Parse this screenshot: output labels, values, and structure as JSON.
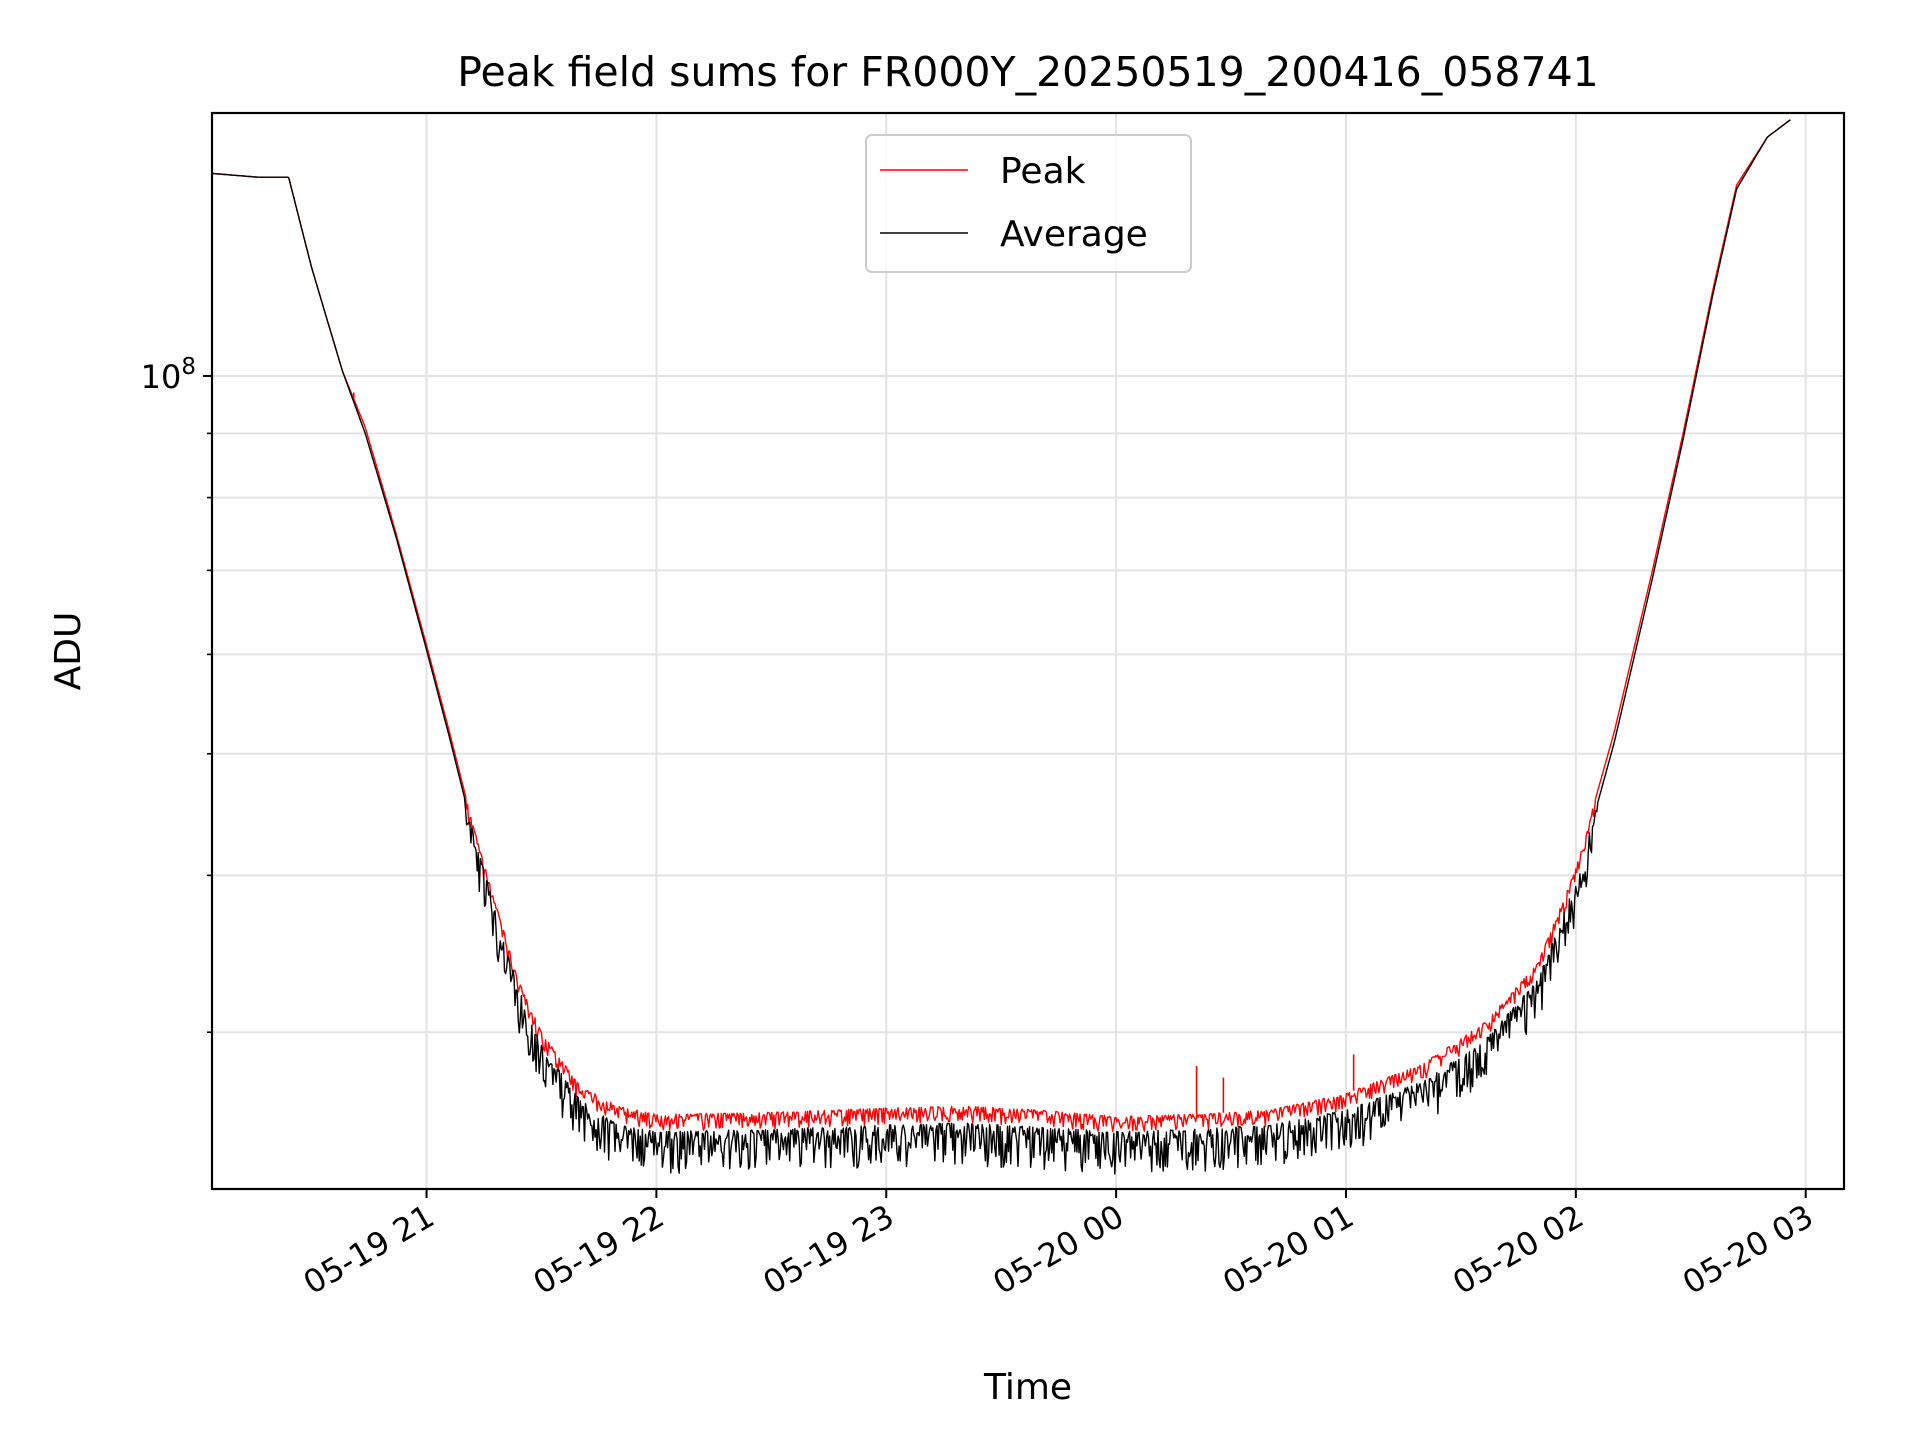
{
  "chart_data": {
    "type": "line",
    "title": "Peak field sums for FR000Y_20250519_200416_058741",
    "xlabel": "Time",
    "ylabel": "ADU",
    "y_scale": "log",
    "grid": true,
    "legend_position": "upper center",
    "xlim": [
      "2025-05-19 20:04",
      "2025-05-20 03:10"
    ],
    "ylim": [
      22500000,
      162000000
    ],
    "x_ticks": [
      {
        "value": "2025-05-19 21:00",
        "label": "05-19 21"
      },
      {
        "value": "2025-05-19 22:00",
        "label": "05-19 22"
      },
      {
        "value": "2025-05-19 23:00",
        "label": "05-19 23"
      },
      {
        "value": "2025-05-20 00:00",
        "label": "05-20 00"
      },
      {
        "value": "2025-05-20 01:00",
        "label": "05-20 01"
      },
      {
        "value": "2025-05-20 02:00",
        "label": "05-20 02"
      },
      {
        "value": "2025-05-20 03:00",
        "label": "05-20 03"
      }
    ],
    "y_major_tick": {
      "value": 100000000,
      "label": "10^8"
    },
    "series": [
      {
        "name": "Peak",
        "color": "#ff0000",
        "points": [
          [
            "2025-05-19 20:04",
            145000000
          ],
          [
            "2025-05-19 20:16",
            144000000
          ],
          [
            "2025-05-19 20:24",
            144000000
          ],
          [
            "2025-05-19 20:30",
            122000000
          ],
          [
            "2025-05-19 20:38",
            101000000
          ],
          [
            "2025-05-19 20:44",
            91000000
          ],
          [
            "2025-05-19 20:52",
            75000000
          ],
          [
            "2025-05-19 21:00",
            61000000
          ],
          [
            "2025-05-19 21:06",
            52000000
          ],
          [
            "2025-05-19 21:12",
            44000000
          ],
          [
            "2025-05-19 21:18",
            38000000
          ],
          [
            "2025-05-19 21:24",
            33000000
          ],
          [
            "2025-05-19 21:30",
            30000000
          ],
          [
            "2025-05-19 21:40",
            27200000
          ],
          [
            "2025-05-19 21:50",
            26200000
          ],
          [
            "2025-05-19 22:00",
            25800000
          ],
          [
            "2025-05-19 22:30",
            25900000
          ],
          [
            "2025-05-19 23:00",
            26100000
          ],
          [
            "2025-05-19 23:20",
            26200000
          ],
          [
            "2025-05-19 23:40",
            26000000
          ],
          [
            "2025-05-20 00:00",
            25700000
          ],
          [
            "2025-05-20 00:20",
            25800000
          ],
          [
            "2025-05-20 00:40",
            26000000
          ],
          [
            "2025-05-20 01:00",
            26800000
          ],
          [
            "2025-05-20 01:20",
            28300000
          ],
          [
            "2025-05-20 01:36",
            30500000
          ],
          [
            "2025-05-20 01:50",
            34000000
          ],
          [
            "2025-05-20 02:00",
            40500000
          ],
          [
            "2025-05-20 02:10",
            52000000
          ],
          [
            "2025-05-20 02:20",
            70000000
          ],
          [
            "2025-05-20 02:28",
            90000000
          ],
          [
            "2025-05-20 02:36",
            118000000
          ],
          [
            "2025-05-20 02:42",
            142000000
          ],
          [
            "2025-05-20 02:50",
            155000000
          ],
          [
            "2025-05-20 02:56",
            160000000
          ]
        ],
        "spikes": [
          {
            "x": "2025-05-19 20:41",
            "value": 97000000
          },
          {
            "x": "2025-05-20 00:21",
            "value": 28200000
          },
          {
            "x": "2025-05-20 00:28",
            "value": 27600000
          },
          {
            "x": "2025-05-20 01:02",
            "value": 28800000
          }
        ]
      },
      {
        "name": "Average",
        "color": "#000000",
        "points": [
          [
            "2025-05-19 20:04",
            145000000
          ],
          [
            "2025-05-19 20:16",
            144000000
          ],
          [
            "2025-05-19 20:24",
            144000000
          ],
          [
            "2025-05-19 20:30",
            122000000
          ],
          [
            "2025-05-19 20:38",
            101000000
          ],
          [
            "2025-05-19 20:44",
            90000000
          ],
          [
            "2025-05-19 20:52",
            74500000
          ],
          [
            "2025-05-19 21:00",
            60500000
          ],
          [
            "2025-05-19 21:06",
            51500000
          ],
          [
            "2025-05-19 21:12",
            43500000
          ],
          [
            "2025-05-19 21:18",
            37500000
          ],
          [
            "2025-05-19 21:24",
            32500000
          ],
          [
            "2025-05-19 21:30",
            29300000
          ],
          [
            "2025-05-19 21:40",
            26500000
          ],
          [
            "2025-05-19 21:50",
            25300000
          ],
          [
            "2025-05-19 22:00",
            25000000
          ],
          [
            "2025-05-19 22:30",
            25100000
          ],
          [
            "2025-05-19 23:00",
            25300000
          ],
          [
            "2025-05-19 23:20",
            25400000
          ],
          [
            "2025-05-19 23:40",
            25200000
          ],
          [
            "2025-05-20 00:00",
            25000000
          ],
          [
            "2025-05-20 00:20",
            25100000
          ],
          [
            "2025-05-20 00:40",
            25300000
          ],
          [
            "2025-05-20 01:00",
            26000000
          ],
          [
            "2025-05-20 01:20",
            27400000
          ],
          [
            "2025-05-20 01:36",
            29500000
          ],
          [
            "2025-05-20 01:50",
            33000000
          ],
          [
            "2025-05-20 02:00",
            39500000
          ],
          [
            "2025-05-20 02:10",
            51000000
          ],
          [
            "2025-05-20 02:20",
            69000000
          ],
          [
            "2025-05-20 02:28",
            89000000
          ],
          [
            "2025-05-20 02:36",
            117000000
          ],
          [
            "2025-05-20 02:42",
            141000000
          ],
          [
            "2025-05-20 02:50",
            155000000
          ],
          [
            "2025-05-20 02:56",
            160000000
          ]
        ]
      }
    ]
  }
}
